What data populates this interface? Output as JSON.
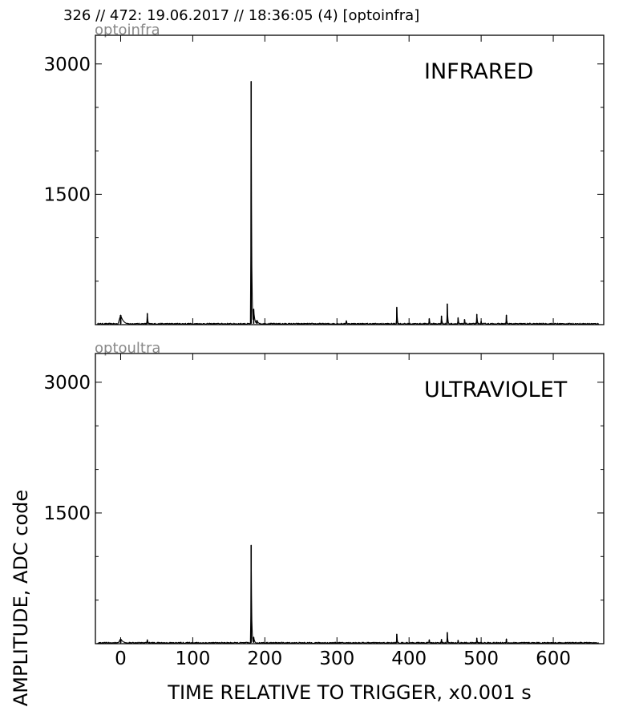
{
  "header": {
    "text": "326 // 472:   19.06.2017 // 18:36:05 (4)  [optoinfra]"
  },
  "chart_data": [
    {
      "type": "line",
      "panel_label": "optoinfra",
      "title": "INFRARED",
      "xlim": [
        -35,
        670
      ],
      "ylim": [
        0,
        3330
      ],
      "yticks": [
        1500,
        3000
      ],
      "yticklabels": [
        "1500",
        "3000"
      ],
      "xticks": [
        0,
        100,
        200,
        300,
        400,
        500,
        600
      ],
      "baseline": 10,
      "peaks": [
        {
          "x": 0,
          "y": 110,
          "w": 4
        },
        {
          "x": 37,
          "y": 130,
          "w": 0.8
        },
        {
          "x": 181,
          "y": 2800,
          "w": 0.7
        },
        {
          "x": 184.5,
          "y": 180,
          "w": 1.5
        },
        {
          "x": 189,
          "y": 50,
          "w": 2.5
        },
        {
          "x": 313,
          "y": 45,
          "w": 1
        },
        {
          "x": 383,
          "y": 200,
          "w": 0.7
        },
        {
          "x": 428,
          "y": 70,
          "w": 0.8
        },
        {
          "x": 445,
          "y": 100,
          "w": 0.8
        },
        {
          "x": 453,
          "y": 240,
          "w": 0.7
        },
        {
          "x": 468,
          "y": 80,
          "w": 0.8
        },
        {
          "x": 477,
          "y": 60,
          "w": 0.8
        },
        {
          "x": 494,
          "y": 120,
          "w": 0.8
        },
        {
          "x": 500,
          "y": 40,
          "w": 1
        },
        {
          "x": 535,
          "y": 110,
          "w": 0.7
        }
      ]
    },
    {
      "type": "line",
      "panel_label": "optoultra",
      "title": "ULTRAVIOLET",
      "xlim": [
        -35,
        670
      ],
      "ylim": [
        0,
        3330
      ],
      "yticks": [
        1500,
        3000
      ],
      "yticklabels": [
        "1500",
        "3000"
      ],
      "xticks": [
        0,
        100,
        200,
        300,
        400,
        500,
        600
      ],
      "xticklabels": [
        "0",
        "100",
        "200",
        "300",
        "400",
        "500",
        "600"
      ],
      "xlabel": "TIME RELATIVE TO TRIGGER,   x0.001 s",
      "baseline": 10,
      "peaks": [
        {
          "x": 0,
          "y": 55,
          "w": 4
        },
        {
          "x": 37,
          "y": 45,
          "w": 1
        },
        {
          "x": 181,
          "y": 1130,
          "w": 0.7
        },
        {
          "x": 184.5,
          "y": 75,
          "w": 1.5
        },
        {
          "x": 383,
          "y": 110,
          "w": 0.7
        },
        {
          "x": 428,
          "y": 45,
          "w": 0.8
        },
        {
          "x": 445,
          "y": 50,
          "w": 0.8
        },
        {
          "x": 453,
          "y": 130,
          "w": 0.7
        },
        {
          "x": 468,
          "y": 40,
          "w": 0.8
        },
        {
          "x": 494,
          "y": 65,
          "w": 0.8
        },
        {
          "x": 535,
          "y": 55,
          "w": 0.7
        }
      ]
    }
  ],
  "ylabel": "AMPLITUDE,  ADC code"
}
